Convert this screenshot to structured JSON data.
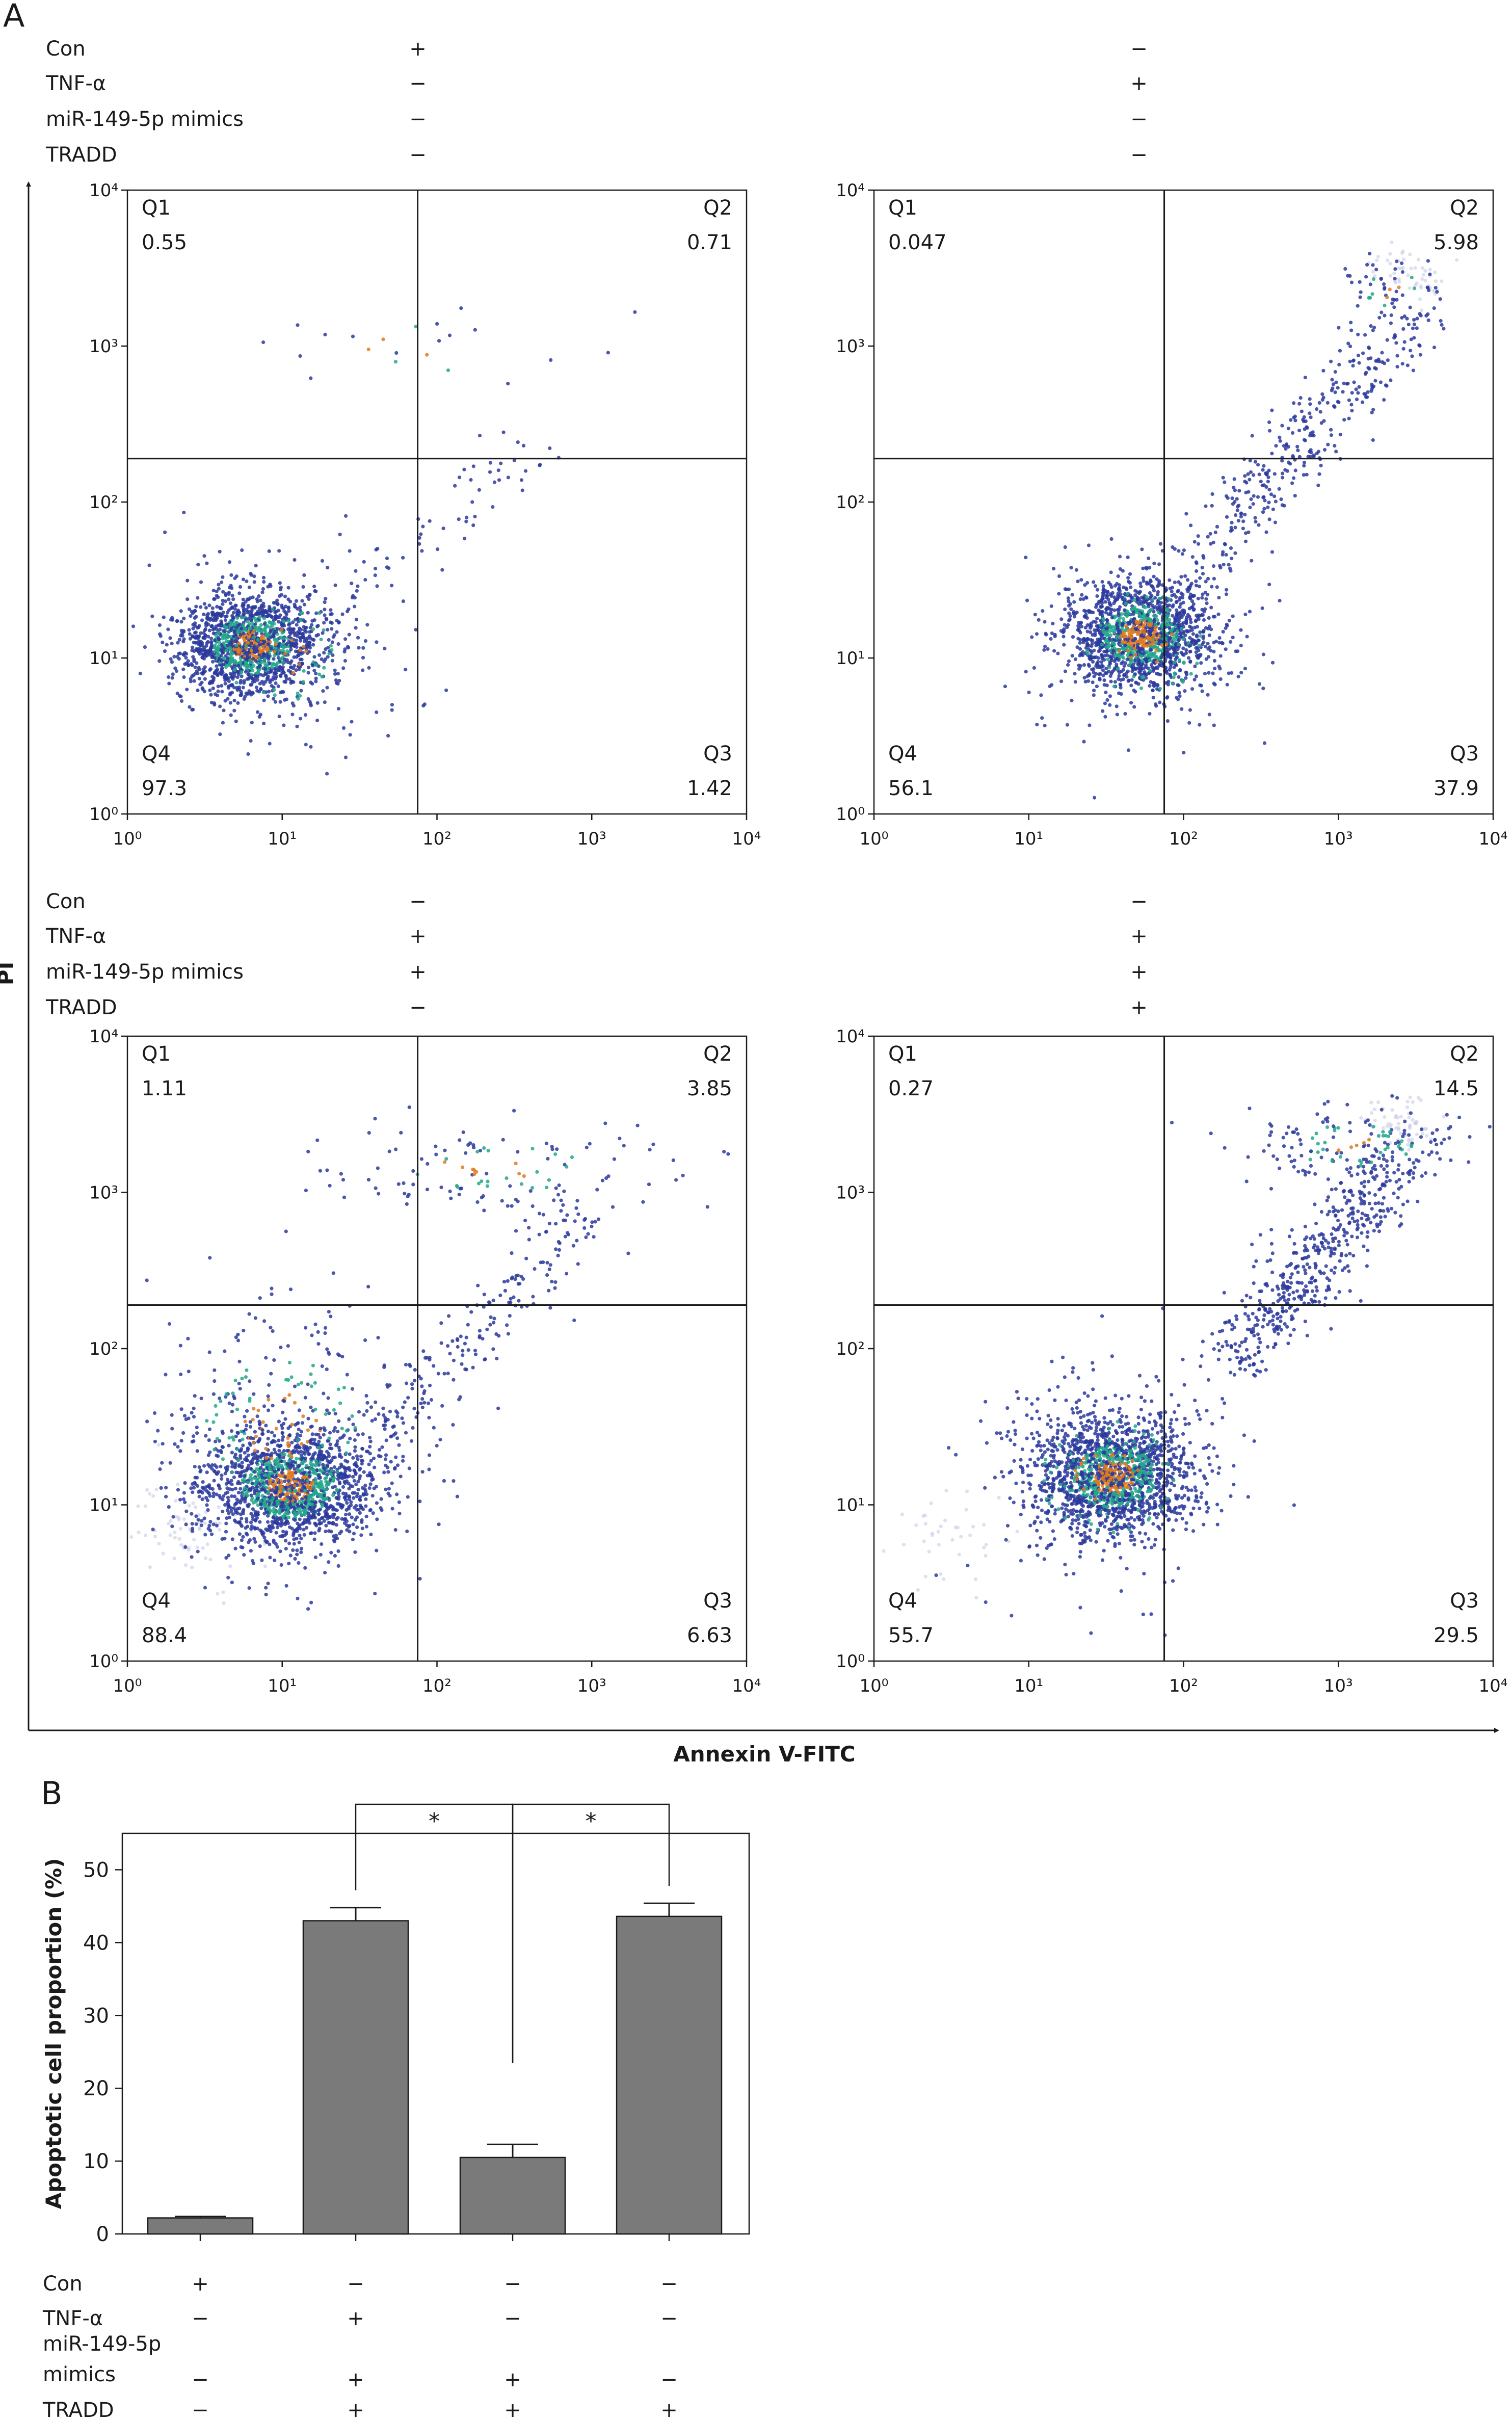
{
  "panel_a_label": "A",
  "panel_b_label": "B",
  "y_axis_title": "PI",
  "x_axis_title": "Annexin V-FITC",
  "condition_names": [
    "Con",
    "TNF-α",
    "miR-149-5p mimics",
    "TRADD"
  ],
  "colors": {
    "bar": "#7a7a7a",
    "dot_low": "#2b3a9c",
    "dot_mid": "#22a88a",
    "dot_high": "#e07a1f",
    "ghost": "#c8cbe6"
  },
  "chart_data": [
    {
      "type": "scatter",
      "title": "",
      "xlabel": "Annexin V-FITC",
      "ylabel": "PI",
      "x_scale": "log",
      "y_scale": "log",
      "xlim": [
        1,
        10000
      ],
      "ylim": [
        1,
        10000
      ],
      "x_ticks": [
        "10⁰",
        "10¹",
        "10²",
        "10³",
        "10⁴"
      ],
      "y_ticks": [
        "10⁰",
        "10¹",
        "10²",
        "10³",
        "10⁴"
      ],
      "gate_x": 75,
      "gate_y": 190,
      "conditions": [
        "+",
        "−",
        "−",
        "−"
      ],
      "quadrants": {
        "Q1": "0.55",
        "Q2": "0.71",
        "Q3": "1.42",
        "Q4": "97.3"
      }
    },
    {
      "type": "scatter",
      "title": "",
      "xlabel": "Annexin V-FITC",
      "ylabel": "PI",
      "x_scale": "log",
      "y_scale": "log",
      "xlim": [
        1,
        10000
      ],
      "ylim": [
        1,
        10000
      ],
      "x_ticks": [
        "10⁰",
        "10¹",
        "10²",
        "10³",
        "10⁴"
      ],
      "y_ticks": [
        "10⁰",
        "10¹",
        "10²",
        "10³",
        "10⁴"
      ],
      "gate_x": 75,
      "gate_y": 190,
      "conditions": [
        "−",
        "+",
        "−",
        "−"
      ],
      "quadrants": {
        "Q1": "0.047",
        "Q2": "5.98",
        "Q3": "37.9",
        "Q4": "56.1"
      }
    },
    {
      "type": "scatter",
      "title": "",
      "xlabel": "Annexin V-FITC",
      "ylabel": "PI",
      "x_scale": "log",
      "y_scale": "log",
      "xlim": [
        1,
        10000
      ],
      "ylim": [
        1,
        10000
      ],
      "x_ticks": [
        "10⁰",
        "10¹",
        "10²",
        "10³",
        "10⁴"
      ],
      "y_ticks": [
        "10⁰",
        "10¹",
        "10²",
        "10³",
        "10⁴"
      ],
      "gate_x": 75,
      "gate_y": 190,
      "conditions": [
        "−",
        "+",
        "+",
        "−"
      ],
      "quadrants": {
        "Q1": "1.11",
        "Q2": "3.85",
        "Q3": "6.63",
        "Q4": "88.4"
      }
    },
    {
      "type": "scatter",
      "title": "",
      "xlabel": "Annexin V-FITC",
      "ylabel": "PI",
      "x_scale": "log",
      "y_scale": "log",
      "xlim": [
        1,
        10000
      ],
      "ylim": [
        1,
        10000
      ],
      "x_ticks": [
        "10⁰",
        "10¹",
        "10²",
        "10³",
        "10⁴"
      ],
      "y_ticks": [
        "10⁰",
        "10¹",
        "10²",
        "10³",
        "10⁴"
      ],
      "gate_x": 75,
      "gate_y": 190,
      "conditions": [
        "−",
        "+",
        "+",
        "+"
      ],
      "quadrants": {
        "Q1": "0.27",
        "Q2": "14.5",
        "Q3": "29.5",
        "Q4": "55.7"
      }
    },
    {
      "type": "bar",
      "title": "",
      "xlabel": "",
      "ylabel": "Apoptotic cell proportion (%)",
      "ylim": [
        0,
        55
      ],
      "y_ticks": [
        0,
        10,
        20,
        30,
        40,
        50
      ],
      "values": [
        2.2,
        43.0,
        10.5,
        43.6
      ],
      "errors": [
        0.2,
        1.8,
        1.8,
        1.8
      ],
      "significance": [
        {
          "from": 1,
          "to": 2,
          "label": "*"
        },
        {
          "from": 2,
          "to": 3,
          "label": "*"
        }
      ],
      "row_labels": [
        "Con",
        "TNF-α",
        "miR-149-5p\nmimics",
        "TRADD"
      ],
      "conditions": [
        [
          "+",
          "−",
          "−",
          "−"
        ],
        [
          "−",
          "+",
          "−",
          "−"
        ],
        [
          "−",
          "+",
          "+",
          "−"
        ],
        [
          "−",
          "+",
          "+",
          "+"
        ]
      ]
    }
  ]
}
